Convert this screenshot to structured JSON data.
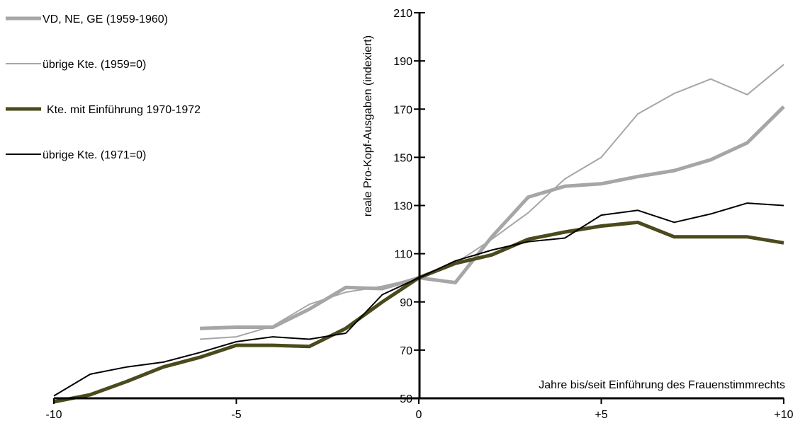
{
  "chart_data": {
    "type": "line",
    "xlabel": "Jahre bis/seit Einführung des Frauenstimmrechts",
    "ylabel": "reale Pro-Kopf-Ausgaben (indexiert)",
    "xlim": [
      -10,
      10
    ],
    "ylim": [
      50,
      210
    ],
    "x_ticks": [
      -10,
      -5,
      0,
      5,
      10
    ],
    "x_tick_labels": [
      "-10",
      "-5",
      "0",
      "+5",
      "+10"
    ],
    "y_ticks": [
      50,
      70,
      90,
      110,
      130,
      150,
      170,
      190,
      210
    ],
    "y_tick_labels": [
      "50",
      "70",
      "90",
      "110",
      "130",
      "150",
      "170",
      "190",
      "210"
    ],
    "grid": false,
    "legend_position": "top-left",
    "series": [
      {
        "name": "VD, NE, GE (1959-1960)",
        "color": "#a6a6a6",
        "x": [
          -6,
          -5,
          -4,
          -3,
          -2,
          -1,
          0,
          1,
          2,
          3,
          4,
          5,
          6,
          7,
          8,
          9,
          10
        ],
        "y": [
          79,
          79.5,
          79.5,
          87,
          96,
          95.5,
          100,
          98,
          117,
          133.5,
          138,
          139,
          142,
          144.5,
          149,
          156,
          171
        ]
      },
      {
        "name": "übrige Kte. (1959=0)",
        "color": "#a6a6a6",
        "x": [
          -6,
          -5,
          -4,
          -3,
          -2,
          -1,
          0,
          1,
          2,
          3,
          4,
          5,
          6,
          7,
          8,
          9,
          10
        ],
        "y": [
          74.5,
          75.5,
          80,
          89,
          94,
          96.5,
          100,
          106,
          116,
          127,
          141,
          150,
          168,
          176.5,
          182.5,
          176,
          188.5
        ]
      },
      {
        "name": "Kte. mit Einführung 1970-1972",
        "color": "#4a4a1c",
        "x": [
          -10,
          -9,
          -8,
          -7,
          -6,
          -5,
          -4,
          -3,
          -2,
          -1,
          0,
          1,
          2,
          3,
          4,
          5,
          6,
          7,
          8,
          9,
          10
        ],
        "y": [
          48.5,
          51.5,
          57,
          63,
          67,
          72,
          72,
          71.5,
          79,
          90,
          100,
          106,
          109.5,
          116,
          119,
          121.5,
          123,
          117,
          117,
          117,
          114.5
        ]
      },
      {
        "name": "übrige Kte. (1971=0)",
        "color": "#000000",
        "x": [
          -10,
          -9,
          -8,
          -7,
          -6,
          -5,
          -4,
          -3,
          -2,
          -1,
          0,
          1,
          2,
          3,
          4,
          5,
          6,
          7,
          8,
          9,
          10
        ],
        "y": [
          51,
          60,
          63,
          65,
          69,
          73.5,
          75.5,
          74.5,
          77,
          93,
          100,
          107,
          111.5,
          115,
          116.5,
          126,
          128,
          123,
          126.5,
          131,
          130
        ]
      }
    ]
  }
}
